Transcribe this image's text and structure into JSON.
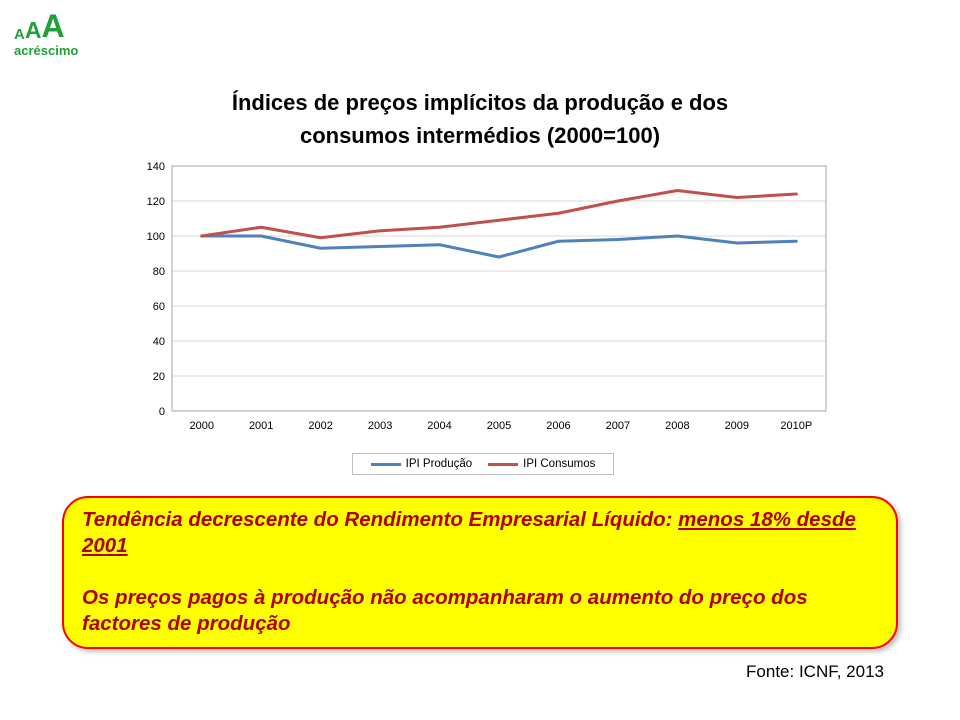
{
  "logo": {
    "letter1": "A",
    "letter2": "A",
    "letter3": "A",
    "subtitle": "acréscimo",
    "color": "#21A038"
  },
  "title": {
    "line1": "Índices de preços implícitos da produção e dos",
    "line2": "consumos intermédios (2000=100)"
  },
  "chart_data": {
    "type": "line",
    "categories": [
      "2000",
      "2001",
      "2002",
      "2003",
      "2004",
      "2005",
      "2006",
      "2007",
      "2008",
      "2009",
      "2010P"
    ],
    "series": [
      {
        "name": "IPI Produção",
        "color": "#4F81BD",
        "values": [
          100,
          100,
          93,
          94,
          95,
          88,
          97,
          98,
          100,
          96,
          97
        ]
      },
      {
        "name": "IPI Consumos",
        "color": "#C0504D",
        "values": [
          100,
          105,
          99,
          103,
          105,
          109,
          113,
          120,
          126,
          122,
          124
        ]
      }
    ],
    "ylim": [
      0,
      140
    ],
    "ytick_step": 20,
    "grid": true,
    "legend_position": "bottom",
    "gridline_color": "#D9D9D9",
    "axis_border_color": "#A6A6A6"
  },
  "callout": {
    "line1_prefix": "Tendência decrescente do Rendimento Empresarial Líquido: ",
    "line1_underlined": "menos 18% desde 2001",
    "line2": "Os preços pagos à produção não acompanharam o aumento do preço dos factores de produção"
  },
  "source": "Fonte: ICNF, 2013"
}
